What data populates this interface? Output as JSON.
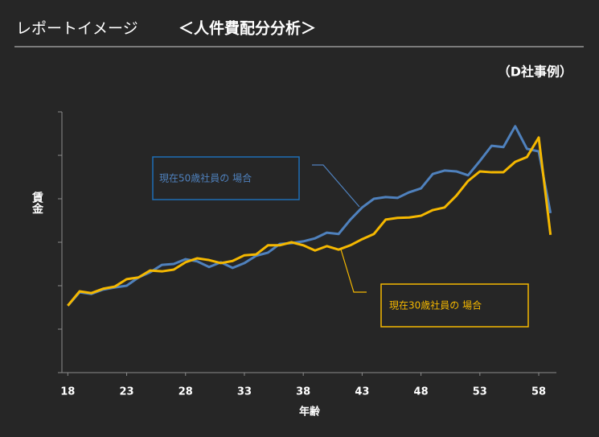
{
  "header": {
    "title": "レポートイメージ",
    "subtitle": "＜人件費配分分析＞",
    "note": "（D社事例）"
  },
  "chart_data": {
    "type": "line",
    "x_label": "年齢",
    "y_label": "賃金",
    "x": [
      18,
      19,
      20,
      21,
      22,
      23,
      24,
      25,
      26,
      27,
      28,
      29,
      30,
      31,
      32,
      33,
      34,
      35,
      36,
      37,
      38,
      39,
      40,
      41,
      42,
      43,
      44,
      45,
      46,
      47,
      48,
      49,
      50,
      51,
      52,
      53,
      54,
      55,
      56,
      57,
      58,
      59
    ],
    "series": [
      {
        "name": "現在50歳社員の 場合",
        "color": "#4f81bd",
        "values": [
          1.54,
          1.85,
          1.81,
          1.91,
          1.96,
          2.0,
          2.19,
          2.31,
          2.48,
          2.5,
          2.61,
          2.56,
          2.43,
          2.54,
          2.41,
          2.52,
          2.69,
          2.76,
          2.96,
          2.98,
          3.02,
          3.09,
          3.22,
          3.19,
          3.52,
          3.8,
          4.0,
          4.04,
          4.02,
          4.15,
          4.24,
          4.57,
          4.65,
          4.63,
          4.54,
          4.87,
          5.22,
          5.19,
          5.67,
          5.15,
          5.09,
          3.67
        ]
      },
      {
        "name": "現在30歳社員の 場合",
        "color": "#f5b800",
        "values": [
          1.54,
          1.87,
          1.83,
          1.93,
          1.98,
          2.15,
          2.19,
          2.35,
          2.33,
          2.37,
          2.54,
          2.63,
          2.59,
          2.52,
          2.57,
          2.7,
          2.72,
          2.93,
          2.93,
          3.0,
          2.93,
          2.81,
          2.91,
          2.83,
          2.93,
          3.07,
          3.19,
          3.52,
          3.56,
          3.57,
          3.61,
          3.74,
          3.8,
          4.07,
          4.41,
          4.63,
          4.61,
          4.61,
          4.85,
          4.96,
          5.41,
          3.17
        ]
      }
    ],
    "xlim": [
      17.5,
      59.5
    ],
    "xticks": [
      18,
      23,
      28,
      33,
      38,
      43,
      48,
      53,
      58
    ],
    "ylim": [
      0,
      6
    ],
    "yticks": [
      0,
      1,
      2,
      3,
      4,
      5,
      6
    ]
  }
}
